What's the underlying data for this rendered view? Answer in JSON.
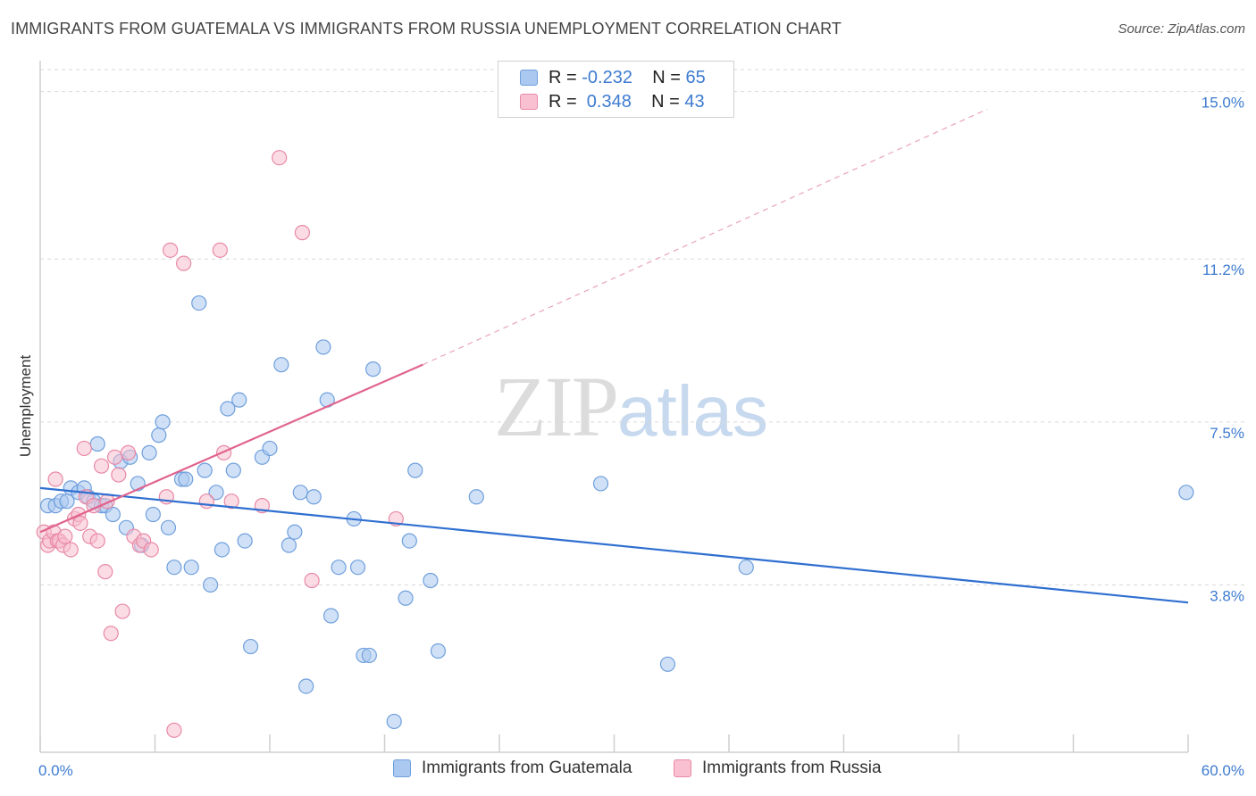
{
  "header": {
    "title": "IMMIGRANTS FROM GUATEMALA VS IMMIGRANTS FROM RUSSIA UNEMPLOYMENT CORRELATION CHART",
    "source": "Source: ZipAtlas.com"
  },
  "legend": {
    "rows": [
      {
        "r_label": "R =",
        "r_value": "-0.232",
        "n_label": "N =",
        "n_value": "65",
        "color": "#aac8f0",
        "border": "#6f9fdc"
      },
      {
        "r_label": "R =",
        "r_value": " 0.348",
        "n_label": "N =",
        "n_value": "43",
        "color": "#f8c0d0",
        "border": "#e889a6"
      }
    ]
  },
  "watermark": {
    "zip": "ZIP",
    "atlas": "atlas"
  },
  "bottom_legend": {
    "series1": "Immigrants from Guatemala",
    "series2": "Immigrants from Russia"
  },
  "chart_data": {
    "type": "scatter",
    "title": "IMMIGRANTS FROM GUATEMALA VS IMMIGRANTS FROM RUSSIA UNEMPLOYMENT CORRELATION CHART",
    "xlabel": "",
    "ylabel": "Unemployment",
    "xlim": [
      0,
      60
    ],
    "ylim": [
      0,
      15.5
    ],
    "x_tick_labels": [
      "0.0%",
      "60.0%"
    ],
    "y_ticks": [
      3.8,
      7.5,
      11.2,
      15.0
    ],
    "y_tick_labels": [
      "3.8%",
      "7.5%",
      "11.2%",
      "15.0%"
    ],
    "grid": "horizontal dashed",
    "legend_position": "top-center",
    "series": [
      {
        "name": "Immigrants from Guatemala",
        "color": "#6f9fdc",
        "fill": "#aac8f0",
        "trend": {
          "x": [
            0,
            60
          ],
          "y": [
            6.0,
            3.4
          ],
          "dashed_extension": false
        },
        "points": [
          [
            0.4,
            5.6
          ],
          [
            0.8,
            5.6
          ],
          [
            1.1,
            5.7
          ],
          [
            1.4,
            5.7
          ],
          [
            1.6,
            6.0
          ],
          [
            2.0,
            5.9
          ],
          [
            2.3,
            6.0
          ],
          [
            2.5,
            5.8
          ],
          [
            2.8,
            5.7
          ],
          [
            3.0,
            7.0
          ],
          [
            3.2,
            5.6
          ],
          [
            3.4,
            5.6
          ],
          [
            3.8,
            5.4
          ],
          [
            4.2,
            6.6
          ],
          [
            4.5,
            5.1
          ],
          [
            4.7,
            6.7
          ],
          [
            5.1,
            6.1
          ],
          [
            5.3,
            4.7
          ],
          [
            5.7,
            6.8
          ],
          [
            5.9,
            5.4
          ],
          [
            6.2,
            7.2
          ],
          [
            6.4,
            7.5
          ],
          [
            6.7,
            5.1
          ],
          [
            7.0,
            4.2
          ],
          [
            7.4,
            6.2
          ],
          [
            7.6,
            6.2
          ],
          [
            7.9,
            4.2
          ],
          [
            8.3,
            10.2
          ],
          [
            8.6,
            6.4
          ],
          [
            8.9,
            3.8
          ],
          [
            9.2,
            5.9
          ],
          [
            9.5,
            4.6
          ],
          [
            9.8,
            7.8
          ],
          [
            10.1,
            6.4
          ],
          [
            10.4,
            8.0
          ],
          [
            10.7,
            4.8
          ],
          [
            11.0,
            2.4
          ],
          [
            11.6,
            6.7
          ],
          [
            12.0,
            6.9
          ],
          [
            12.6,
            8.8
          ],
          [
            13.0,
            4.7
          ],
          [
            13.3,
            5.0
          ],
          [
            13.6,
            5.9
          ],
          [
            13.9,
            1.5
          ],
          [
            14.3,
            5.8
          ],
          [
            14.8,
            9.2
          ],
          [
            15.0,
            8.0
          ],
          [
            15.2,
            3.1
          ],
          [
            15.6,
            4.2
          ],
          [
            16.4,
            5.3
          ],
          [
            16.6,
            4.2
          ],
          [
            16.9,
            2.2
          ],
          [
            17.2,
            2.2
          ],
          [
            17.4,
            8.7
          ],
          [
            18.5,
            0.7
          ],
          [
            19.1,
            3.5
          ],
          [
            19.3,
            4.8
          ],
          [
            19.6,
            6.4
          ],
          [
            20.4,
            3.9
          ],
          [
            20.8,
            2.3
          ],
          [
            22.8,
            5.8
          ],
          [
            29.3,
            6.1
          ],
          [
            32.8,
            2.0
          ],
          [
            36.9,
            4.2
          ],
          [
            59.9,
            5.9
          ]
        ]
      },
      {
        "name": "Immigrants from Russia",
        "color": "#e889a6",
        "fill": "#f8c0d0",
        "trend": {
          "x": [
            0,
            20
          ],
          "y": [
            5.0,
            8.8
          ],
          "dashed_extension": true,
          "extension_to": [
            49.5,
            14.6
          ]
        },
        "points": [
          [
            0.2,
            5.0
          ],
          [
            0.4,
            4.7
          ],
          [
            0.5,
            4.8
          ],
          [
            0.7,
            5.0
          ],
          [
            0.8,
            6.2
          ],
          [
            0.9,
            4.8
          ],
          [
            1.0,
            4.8
          ],
          [
            1.2,
            4.7
          ],
          [
            1.3,
            4.9
          ],
          [
            1.6,
            4.6
          ],
          [
            1.8,
            5.3
          ],
          [
            2.0,
            5.4
          ],
          [
            2.1,
            5.2
          ],
          [
            2.3,
            6.9
          ],
          [
            2.4,
            5.8
          ],
          [
            2.6,
            4.9
          ],
          [
            2.8,
            5.6
          ],
          [
            3.0,
            4.8
          ],
          [
            3.2,
            6.5
          ],
          [
            3.4,
            4.1
          ],
          [
            3.5,
            5.7
          ],
          [
            3.7,
            2.7
          ],
          [
            3.9,
            6.7
          ],
          [
            4.1,
            6.3
          ],
          [
            4.3,
            3.2
          ],
          [
            4.6,
            6.8
          ],
          [
            4.9,
            4.9
          ],
          [
            5.2,
            4.7
          ],
          [
            5.4,
            4.8
          ],
          [
            5.8,
            4.6
          ],
          [
            6.6,
            5.8
          ],
          [
            6.8,
            11.4
          ],
          [
            7.0,
            0.5
          ],
          [
            7.5,
            11.1
          ],
          [
            8.7,
            5.7
          ],
          [
            9.4,
            11.4
          ],
          [
            9.6,
            6.8
          ],
          [
            10.0,
            5.7
          ],
          [
            11.6,
            5.6
          ],
          [
            12.5,
            13.5
          ],
          [
            13.7,
            11.8
          ],
          [
            14.2,
            3.9
          ],
          [
            18.6,
            5.3
          ]
        ]
      }
    ]
  }
}
